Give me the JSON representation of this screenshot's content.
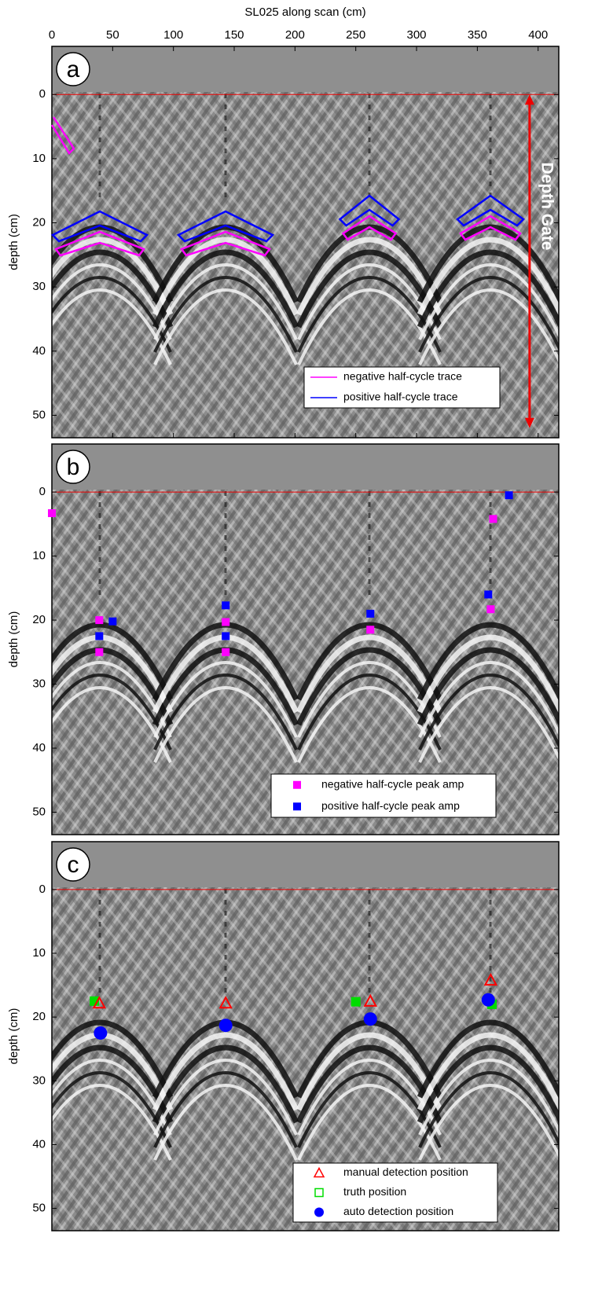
{
  "chart_data": [
    {
      "type": "contour",
      "panel_label": "a",
      "xlabel": "SL025 along scan (cm)",
      "ylabel": "depth (cm)",
      "xlim": [
        0,
        417
      ],
      "xticks": [
        0,
        50,
        100,
        150,
        200,
        250,
        300,
        350,
        400
      ],
      "ylim": [
        -7.5,
        53.5
      ],
      "y_inverted": true,
      "yticks": [
        0,
        10,
        20,
        30,
        40,
        50
      ],
      "reference_line": 0,
      "legend": "lower right",
      "annotation": {
        "text": "Depth Gate",
        "x": 393,
        "range": [
          0,
          52
        ]
      },
      "series": [
        {
          "name": "negative half-cycle trace",
          "color": "#ff00ff"
        },
        {
          "name": "positive half-cycle trace",
          "color": "#0000ff"
        }
      ]
    },
    {
      "type": "scatter",
      "panel_label": "b",
      "ylabel": "depth (cm)",
      "xlim": [
        0,
        417
      ],
      "ylim": [
        -7.5,
        53.5
      ],
      "y_inverted": true,
      "yticks": [
        0,
        10,
        20,
        30,
        40,
        50
      ],
      "reference_line": 0,
      "legend": "lower right",
      "series": [
        {
          "name": "negative half-cycle peak amp",
          "color": "#ff00ff",
          "marker": "square",
          "x": [
            0,
            39,
            39,
            143,
            143,
            262,
            363,
            361
          ],
          "values": [
            3.3,
            20,
            25,
            20.3,
            25,
            21.5,
            4.2,
            18.3
          ]
        },
        {
          "name": "positive half-cycle peak amp",
          "color": "#0000ff",
          "marker": "square",
          "x": [
            39,
            50,
            143,
            143,
            262,
            359,
            376
          ],
          "values": [
            22.5,
            20.2,
            17.7,
            22.5,
            19,
            16,
            0.5
          ]
        }
      ]
    },
    {
      "type": "scatter",
      "panel_label": "c",
      "ylabel": "depth (cm)",
      "xlim": [
        0,
        417
      ],
      "ylim": [
        -7.5,
        53.5
      ],
      "y_inverted": true,
      "yticks": [
        0,
        10,
        20,
        30,
        40,
        50
      ],
      "reference_line": 0,
      "legend": "lower right",
      "series": [
        {
          "name": "truth position",
          "color": "#00dd00",
          "marker": "filled-square",
          "x": [
            35,
            250,
            362
          ],
          "values": [
            17.5,
            17.6,
            18
          ]
        },
        {
          "name": "manual detection position",
          "color": "#ff0000",
          "marker": "triangle",
          "x": [
            39,
            143,
            262,
            361
          ],
          "values": [
            17.8,
            17.8,
            17.5,
            14.2
          ]
        },
        {
          "name": "auto detection position",
          "color": "#0000ff",
          "marker": "circle",
          "x": [
            40,
            143,
            262,
            359
          ],
          "values": [
            22.5,
            21.3,
            20.3,
            17.3
          ]
        }
      ],
      "legend_order": [
        1,
        0,
        2
      ]
    }
  ]
}
